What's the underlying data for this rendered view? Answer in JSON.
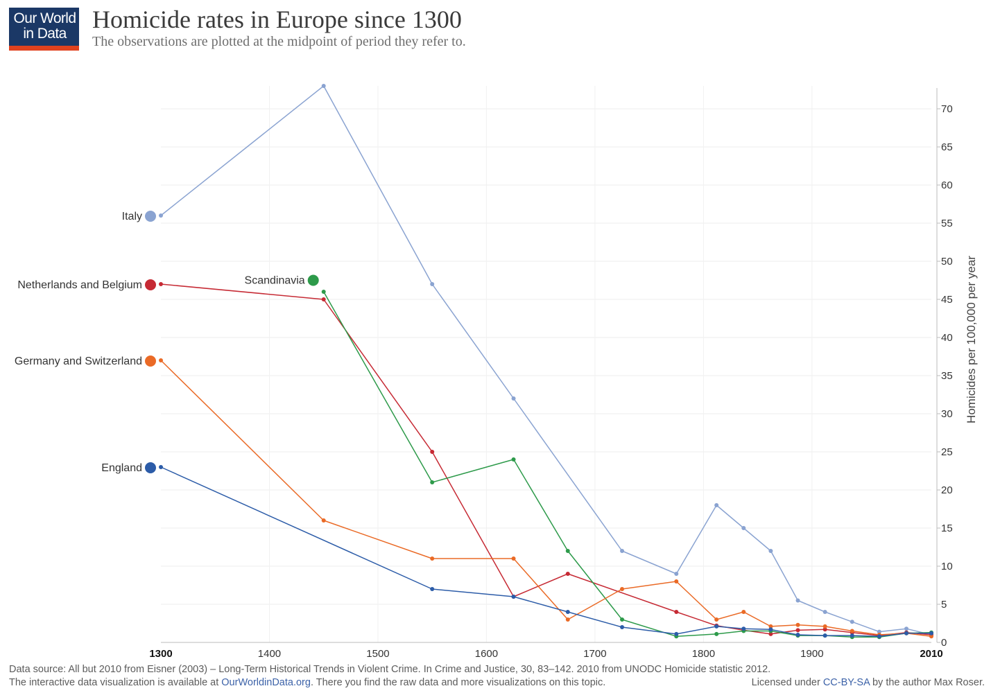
{
  "header": {
    "logo_line1": "Our World",
    "logo_line2": "in Data",
    "title": "Homicide rates in Europe since 1300",
    "subtitle": "The observations are plotted at the midpoint of period they refer to."
  },
  "footer": {
    "source": "Data source: All but 2010 from Eisner (2003) – Long-Term Historical Trends in Violent Crime. In Crime and Justice, 30, 83–142. 2010 from UNODC Homicide statistic 2012.",
    "interactive_prefix": "The interactive data visualization is available at ",
    "link_text": "OurWorldinData.org",
    "interactive_suffix": ". There you find the raw data and more visualizations on this topic.",
    "license_prefix": "Licensed under ",
    "license_link": "CC-BY-SA",
    "license_suffix": " by the author Max Roser."
  },
  "chart_data": {
    "type": "line",
    "title": "Homicide rates in Europe since 1300",
    "ylabel": "Homicides per 100,000 per year",
    "xlabel": "",
    "xlim": [
      1300,
      2010
    ],
    "ylim": [
      0,
      73
    ],
    "x_ticks": [
      1300,
      1400,
      1500,
      1600,
      1700,
      1800,
      1900,
      2010
    ],
    "y_ticks": [
      0,
      5,
      10,
      15,
      20,
      25,
      30,
      35,
      40,
      45,
      50,
      55,
      60,
      65,
      70
    ],
    "y_axis_position": "right",
    "grid": true,
    "legend": "inline labels at series start",
    "series": [
      {
        "name": "Italy",
        "color": "#8aa3d1",
        "points": [
          [
            1300,
            56
          ],
          [
            1450,
            73
          ],
          [
            1550,
            47
          ],
          [
            1625,
            32
          ],
          [
            1725,
            12
          ],
          [
            1775,
            9
          ],
          [
            1812,
            18
          ],
          [
            1837,
            15
          ],
          [
            1862,
            12
          ],
          [
            1887,
            5.5
          ],
          [
            1912,
            4
          ],
          [
            1937,
            2.7
          ],
          [
            1962,
            1.4
          ],
          [
            1987,
            1.8
          ],
          [
            2010,
            1
          ]
        ]
      },
      {
        "name": "Netherlands and Belgium",
        "color": "#c62a34",
        "points": [
          [
            1300,
            47
          ],
          [
            1450,
            45
          ],
          [
            1550,
            25
          ],
          [
            1625,
            6
          ],
          [
            1675,
            9
          ],
          [
            1775,
            4
          ],
          [
            1812,
            2.2
          ],
          [
            1837,
            1.6
          ],
          [
            1862,
            1.1
          ],
          [
            1887,
            1.6
          ],
          [
            1912,
            1.7
          ],
          [
            1937,
            1.3
          ],
          [
            1962,
            0.9
          ],
          [
            1987,
            1.3
          ],
          [
            2010,
            1
          ]
        ]
      },
      {
        "name": "Scandinavia",
        "color": "#2d9a4a",
        "points": [
          [
            1450,
            46
          ],
          [
            1550,
            21
          ],
          [
            1625,
            24
          ],
          [
            1675,
            12
          ],
          [
            1725,
            3
          ],
          [
            1775,
            0.8
          ],
          [
            1812,
            1.1
          ],
          [
            1837,
            1.5
          ],
          [
            1862,
            1.5
          ],
          [
            1887,
            0.9
          ],
          [
            1912,
            0.9
          ],
          [
            1937,
            0.7
          ],
          [
            1962,
            0.7
          ],
          [
            1987,
            1.2
          ],
          [
            2010,
            1.3
          ]
        ]
      },
      {
        "name": "Germany and Switzerland",
        "color": "#ea6a26",
        "points": [
          [
            1300,
            37
          ],
          [
            1450,
            16
          ],
          [
            1550,
            11
          ],
          [
            1625,
            11
          ],
          [
            1675,
            3
          ],
          [
            1725,
            7
          ],
          [
            1775,
            8
          ],
          [
            1812,
            3
          ],
          [
            1837,
            4
          ],
          [
            1862,
            2.1
          ],
          [
            1887,
            2.3
          ],
          [
            1912,
            2.1
          ],
          [
            1937,
            1.5
          ],
          [
            1962,
            1
          ],
          [
            1987,
            1.2
          ],
          [
            2010,
            0.8
          ]
        ]
      },
      {
        "name": "England",
        "color": "#2c5ca8",
        "points": [
          [
            1300,
            23
          ],
          [
            1550,
            7
          ],
          [
            1625,
            6
          ],
          [
            1675,
            4
          ],
          [
            1725,
            2
          ],
          [
            1775,
            1.1
          ],
          [
            1812,
            2.1
          ],
          [
            1837,
            1.8
          ],
          [
            1862,
            1.7
          ],
          [
            1887,
            1
          ],
          [
            1912,
            0.9
          ],
          [
            1937,
            0.9
          ],
          [
            1962,
            0.8
          ],
          [
            1987,
            1.2
          ],
          [
            2010,
            1.2
          ]
        ]
      }
    ]
  }
}
